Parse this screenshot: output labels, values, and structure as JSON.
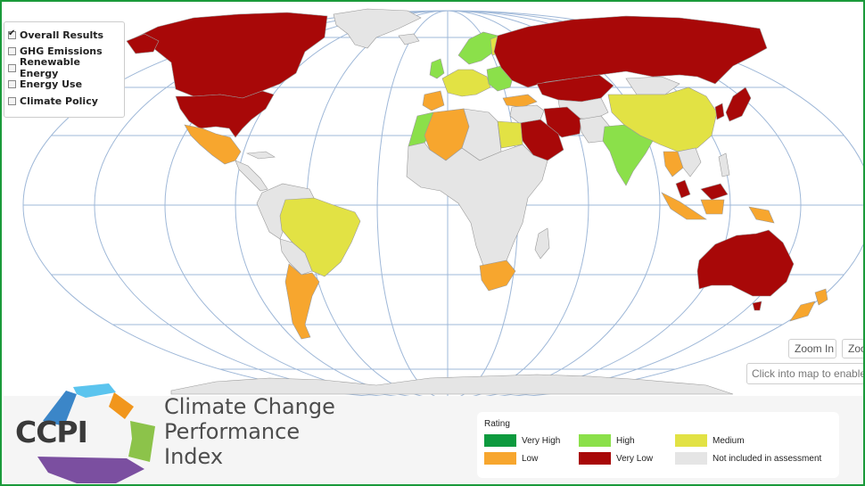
{
  "layers": {
    "items": [
      {
        "label": "Overall Results",
        "checked": true
      },
      {
        "label": "GHG Emissions",
        "checked": false
      },
      {
        "label": "Renewable Energy",
        "checked": false
      },
      {
        "label": "Energy Use",
        "checked": false
      },
      {
        "label": "Climate Policy",
        "checked": false
      }
    ]
  },
  "map_controls": {
    "zoom_in_label": "Zoom In",
    "zoom_out_label": "Zoom Out",
    "hint_text": "Click into map to enable"
  },
  "brand": {
    "logo_text": "CCPI",
    "title_line1": "Climate Change",
    "title_line2": "Performance",
    "title_line3": "Index"
  },
  "legend": {
    "title": "Rating",
    "items": [
      {
        "label": "Very High",
        "color": "#0d9a3e"
      },
      {
        "label": "High",
        "color": "#8be04a"
      },
      {
        "label": "Medium",
        "color": "#e2e244"
      },
      {
        "label": "Low",
        "color": "#f7a62e"
      },
      {
        "label": "Very Low",
        "color": "#a80808"
      },
      {
        "label": "Not included in assessment",
        "color": "#e5e5e5"
      }
    ]
  },
  "colors": {
    "very_high": "#0d9a3e",
    "high": "#8be04a",
    "medium": "#e2e244",
    "low": "#f7a62e",
    "very_low": "#a80808",
    "not_included": "#e5e5e5",
    "frame": "#1a9a3a",
    "graticule": "#9fb8d8"
  }
}
